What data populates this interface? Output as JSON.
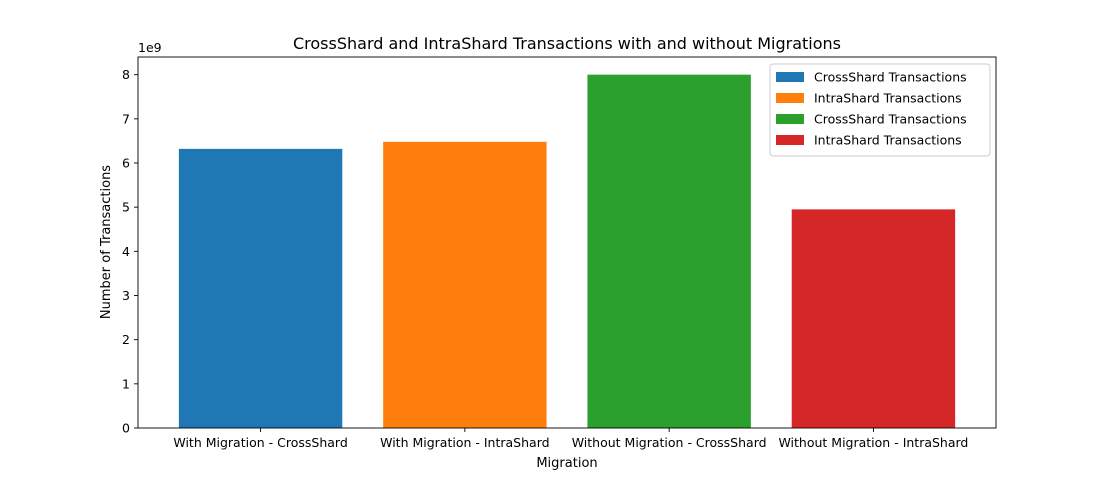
{
  "chart_data": {
    "type": "bar",
    "title": "CrossShard and IntraShard Transactions with and without Migrations",
    "xlabel": "Migration",
    "ylabel": "Number of Transactions",
    "y_offset_text": "1e9",
    "y_multiplier": 1000000000,
    "ylim": [
      0,
      8.4
    ],
    "yticks": [
      0,
      1,
      2,
      3,
      4,
      5,
      6,
      7,
      8
    ],
    "categories": [
      "With Migration - CrossShard",
      "With Migration - IntraShard",
      "Without Migration - CrossShard",
      "Without Migration - IntraShard"
    ],
    "values": [
      6.32,
      6.48,
      8.0,
      4.95
    ],
    "colors": [
      "#1f77b4",
      "#ff7f0e",
      "#2ca02c",
      "#d62728"
    ],
    "grid": false,
    "legend": {
      "placement": "top-right",
      "entries": [
        {
          "label": "CrossShard Transactions",
          "color": "#1f77b4"
        },
        {
          "label": "IntraShard Transactions",
          "color": "#ff7f0e"
        },
        {
          "label": "CrossShard Transactions",
          "color": "#2ca02c"
        },
        {
          "label": "IntraShard Transactions",
          "color": "#d62728"
        }
      ]
    }
  }
}
